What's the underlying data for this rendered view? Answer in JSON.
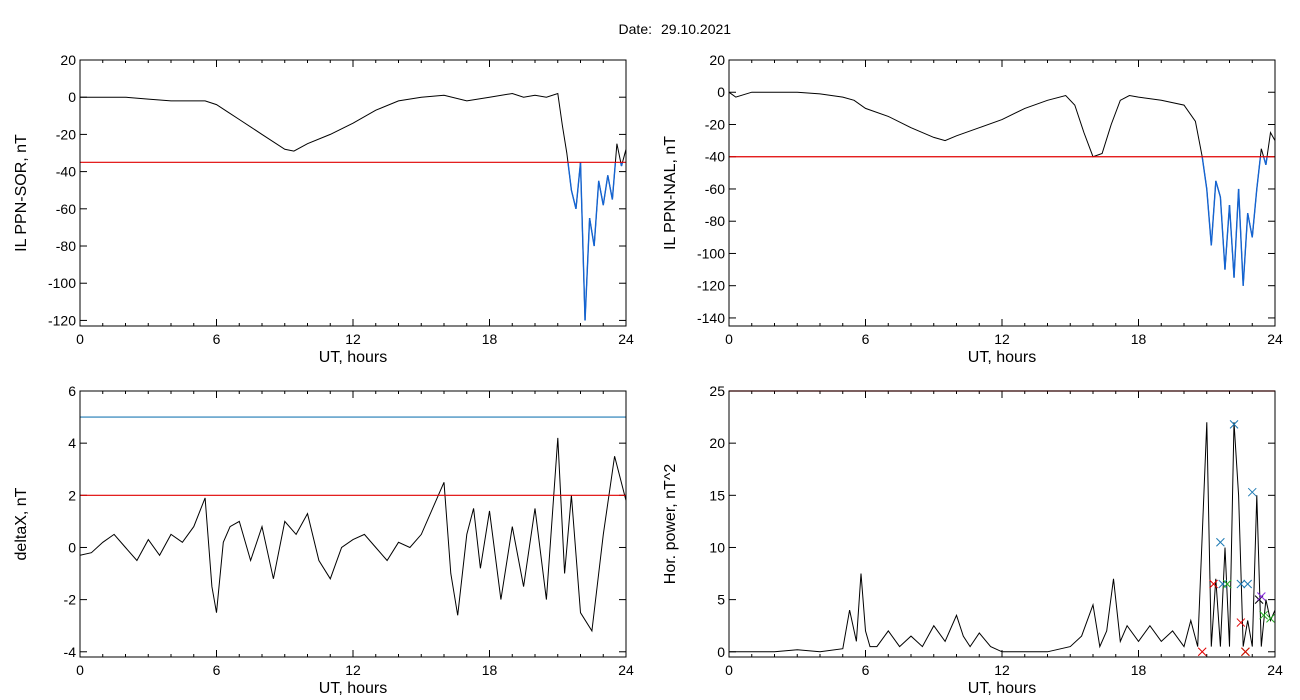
{
  "header": {
    "date_label": "Date:",
    "date_value": "29.10.2021"
  },
  "chart_data": [
    {
      "type": "line",
      "ylabel": "IL PPN-SOR, nT",
      "xlabel": "UT, hours",
      "xlim": [
        0,
        24
      ],
      "ylim": [
        -123,
        20
      ],
      "xticks": [
        0,
        6,
        12,
        18,
        24
      ],
      "yticks": [
        20,
        0,
        -20,
        -40,
        -60,
        -80,
        -100,
        -120
      ],
      "threshold": -35,
      "threshold_color": "#e00000",
      "line_color": "#000000",
      "below_color": "#1464d2",
      "series": [
        {
          "x": [
            0,
            0.5,
            1,
            2,
            3,
            4,
            5,
            5.5,
            6,
            6.5,
            7,
            8,
            9,
            9.4,
            10,
            11,
            12,
            13,
            14,
            15,
            16,
            17,
            18,
            19,
            19.5,
            20,
            20.5,
            21,
            21.2,
            21.4,
            21.6,
            21.8,
            22.0,
            22.2,
            22.4,
            22.6,
            22.8,
            23.0,
            23.2,
            23.4,
            23.6,
            23.8,
            24.0
          ],
          "values": [
            0,
            0,
            0,
            0,
            -1,
            -2,
            -2,
            -2,
            -4,
            -8,
            -12,
            -20,
            -28,
            -29,
            -25,
            -20,
            -14,
            -7,
            -2,
            0,
            1,
            -2,
            0,
            2,
            0,
            1,
            0,
            2,
            -15,
            -30,
            -50,
            -60,
            -35,
            -120,
            -65,
            -80,
            -45,
            -58,
            -42,
            -55,
            -25,
            -37,
            -28
          ]
        }
      ]
    },
    {
      "type": "line",
      "ylabel": "IL PPN-NAL, nT",
      "xlabel": "UT, hours",
      "xlim": [
        0,
        24
      ],
      "ylim": [
        -145,
        20
      ],
      "xticks": [
        0,
        6,
        12,
        18,
        24
      ],
      "yticks": [
        20,
        0,
        -20,
        -40,
        -60,
        -80,
        -100,
        -120,
        -140
      ],
      "threshold": -40,
      "threshold_color": "#e00000",
      "line_color": "#000000",
      "below_color": "#1464d2",
      "series": [
        {
          "x": [
            0,
            0.3,
            1,
            2,
            3,
            4,
            5,
            5.5,
            6,
            7,
            8,
            9,
            9.5,
            10,
            11,
            12,
            13,
            14,
            14.8,
            15.2,
            15.6,
            16,
            16.4,
            16.8,
            17.2,
            17.6,
            18,
            19,
            20,
            20.5,
            20.8,
            21.0,
            21.2,
            21.4,
            21.6,
            21.8,
            22.0,
            22.2,
            22.4,
            22.6,
            22.8,
            23.0,
            23.2,
            23.4,
            23.6,
            23.8,
            24.0
          ],
          "values": [
            0,
            -3,
            0,
            0,
            0,
            -1,
            -3,
            -5,
            -10,
            -15,
            -22,
            -28,
            -30,
            -27,
            -22,
            -17,
            -10,
            -5,
            -2,
            -8,
            -25,
            -40,
            -38,
            -20,
            -5,
            -2,
            -3,
            -5,
            -8,
            -18,
            -40,
            -60,
            -95,
            -55,
            -65,
            -110,
            -70,
            -115,
            -60,
            -120,
            -75,
            -90,
            -60,
            -35,
            -45,
            -25,
            -30
          ]
        }
      ]
    },
    {
      "type": "line",
      "ylabel": "deltaX, nT",
      "xlabel": "UT, hours",
      "xlim": [
        0,
        24
      ],
      "ylim": [
        -4.2,
        6
      ],
      "xticks": [
        0,
        6,
        12,
        18,
        24
      ],
      "yticks": [
        6,
        4,
        2,
        0,
        -2,
        -4
      ],
      "thresholds": [
        {
          "value": 5,
          "color": "#1e7ab4"
        },
        {
          "value": 2,
          "color": "#e00000"
        }
      ],
      "line_color": "#000000",
      "series": [
        {
          "x": [
            0,
            0.5,
            1,
            1.5,
            2,
            2.5,
            3,
            3.5,
            4,
            4.5,
            5,
            5.5,
            5.8,
            6.0,
            6.3,
            6.6,
            7.0,
            7.5,
            8.0,
            8.5,
            9.0,
            9.5,
            10.0,
            10.5,
            11.0,
            11.5,
            12.0,
            12.5,
            13.0,
            13.5,
            14.0,
            14.5,
            15.0,
            15.5,
            16.0,
            16.3,
            16.6,
            17.0,
            17.3,
            17.6,
            18.0,
            18.5,
            19.0,
            19.5,
            20.0,
            20.5,
            21.0,
            21.3,
            21.6,
            22.0,
            22.5,
            23.0,
            23.5,
            24.0
          ],
          "values": [
            -0.3,
            -0.2,
            0.2,
            0.5,
            0.0,
            -0.5,
            0.3,
            -0.3,
            0.5,
            0.2,
            0.8,
            1.9,
            -1.5,
            -2.5,
            0.2,
            0.8,
            1.0,
            -0.5,
            0.8,
            -1.2,
            1.0,
            0.5,
            1.3,
            -0.5,
            -1.2,
            0.0,
            0.3,
            0.5,
            0.0,
            -0.5,
            0.2,
            0.0,
            0.5,
            1.5,
            2.5,
            -1.0,
            -2.6,
            0.5,
            1.5,
            -0.8,
            1.4,
            -2.0,
            0.8,
            -1.5,
            1.5,
            -2.0,
            4.2,
            -1.0,
            2.0,
            -2.5,
            -3.2,
            0.5,
            3.5,
            1.8
          ]
        }
      ]
    },
    {
      "type": "line",
      "ylabel": "Hor. power, nT^2",
      "xlabel": "UT, hours",
      "xlim": [
        0,
        24
      ],
      "ylim": [
        -0.5,
        25
      ],
      "xticks": [
        0,
        6,
        12,
        18,
        24
      ],
      "yticks": [
        25,
        20,
        15,
        10,
        5,
        0
      ],
      "threshold": 25,
      "threshold_color": "#e00000",
      "line_color": "#000000",
      "series": [
        {
          "x": [
            0,
            2,
            3,
            4,
            5,
            5.3,
            5.6,
            5.8,
            6.0,
            6.2,
            6.5,
            7.0,
            7.5,
            8.0,
            8.5,
            9.0,
            9.5,
            10.0,
            10.3,
            10.6,
            11.0,
            11.5,
            12.0,
            13,
            14,
            15,
            15.5,
            16.0,
            16.3,
            16.6,
            16.9,
            17.2,
            17.5,
            18.0,
            18.5,
            19.0,
            19.5,
            20.0,
            20.3,
            20.6,
            21.0,
            21.2,
            21.4,
            21.6,
            21.8,
            22.0,
            22.2,
            22.4,
            22.6,
            22.8,
            23.0,
            23.2,
            23.4,
            23.6,
            23.8,
            24.0
          ],
          "values": [
            0,
            0,
            0.2,
            0,
            0.3,
            4.0,
            1.0,
            7.5,
            2.0,
            0.5,
            0.5,
            2.0,
            0.5,
            1.5,
            0.5,
            2.5,
            1.0,
            3.5,
            1.5,
            0.5,
            1.8,
            0.5,
            0,
            0,
            0,
            0.5,
            1.5,
            4.5,
            0.5,
            2.0,
            7.0,
            1.0,
            2.5,
            1.0,
            2.5,
            1.0,
            2.0,
            0.5,
            3.0,
            0.5,
            22.0,
            0.5,
            7.0,
            0.5,
            10.0,
            0.5,
            22.0,
            15.0,
            0.5,
            3.0,
            0.5,
            15.0,
            0.5,
            5.0,
            3.0,
            4.0
          ]
        }
      ],
      "markers": [
        {
          "x": 20.8,
          "y": 0,
          "color": "#e00000"
        },
        {
          "x": 21.3,
          "y": 6.5,
          "color": "#e00000"
        },
        {
          "x": 21.6,
          "y": 10.5,
          "color": "#1e7ab4"
        },
        {
          "x": 21.7,
          "y": 6.5,
          "color": "#1e7ab4"
        },
        {
          "x": 21.9,
          "y": 6.5,
          "color": "#22aa22"
        },
        {
          "x": 22.2,
          "y": 21.8,
          "color": "#1e7ab4"
        },
        {
          "x": 22.5,
          "y": 6.5,
          "color": "#1e7ab4"
        },
        {
          "x": 22.5,
          "y": 2.8,
          "color": "#e00000"
        },
        {
          "x": 22.7,
          "y": 0,
          "color": "#22aa22"
        },
        {
          "x": 22.7,
          "y": 0,
          "color": "#e00000"
        },
        {
          "x": 22.8,
          "y": 6.5,
          "color": "#1e7ab4"
        },
        {
          "x": 23.0,
          "y": 15.3,
          "color": "#1e7ab4"
        },
        {
          "x": 23.3,
          "y": 5.0,
          "color": "#000000"
        },
        {
          "x": 23.4,
          "y": 5.3,
          "color": "#8a2be2"
        },
        {
          "x": 23.5,
          "y": 3.5,
          "color": "#22aa22"
        },
        {
          "x": 23.8,
          "y": 3.2,
          "color": "#22aa22"
        }
      ]
    }
  ]
}
